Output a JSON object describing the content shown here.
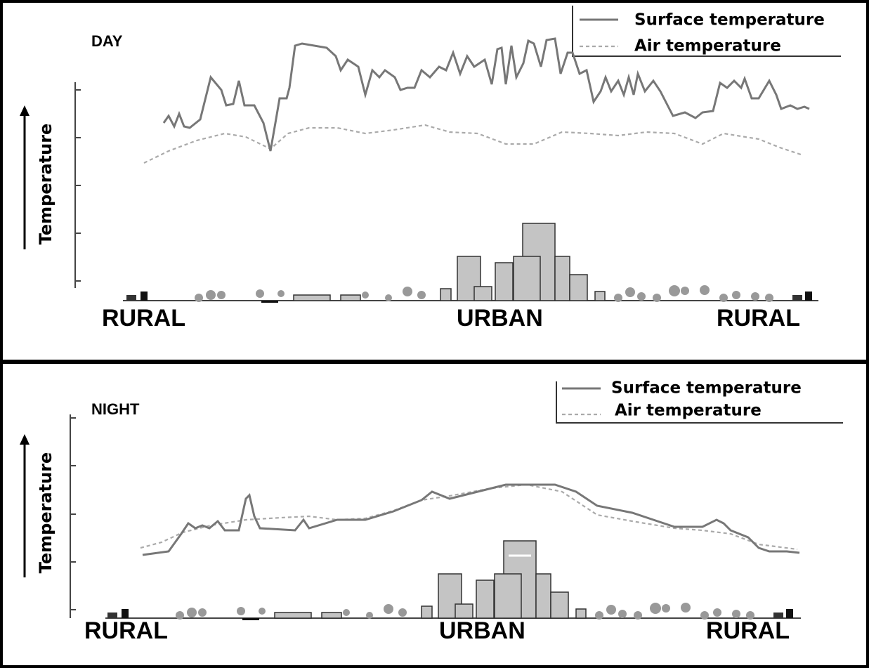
{
  "panels": [
    {
      "title": "DAY",
      "y_label": "Temperature",
      "legend": [
        "Surface temperature",
        "Air temperature"
      ],
      "x_labels": [
        "RURAL",
        "URBAN",
        "RURAL"
      ]
    },
    {
      "title": "NIGHT",
      "y_label": "Temperature",
      "legend": [
        "Surface temperature",
        "Air temperature"
      ],
      "x_labels": [
        "RURAL",
        "URBAN",
        "RURAL"
      ]
    }
  ]
}
